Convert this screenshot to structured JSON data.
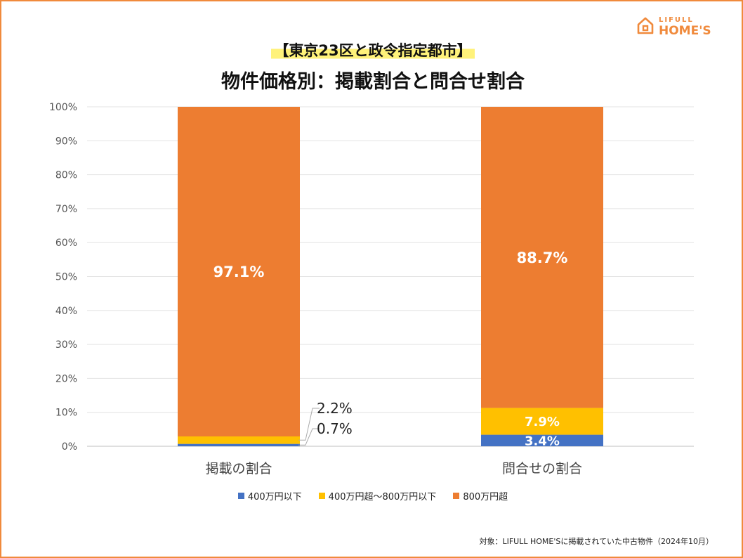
{
  "brand": {
    "line1": "LIFULL",
    "line2": "HOME'S",
    "color": "#f08a3c",
    "icon": "house-icon"
  },
  "title_line1": "【東京23区と政令指定都市】",
  "title_line2": "物件価格別：掲載割合と問合せ割合",
  "source_note": "対象：LIFULL HOME'Sに掲載されていた中古物件（2024年10月）",
  "chart_data": {
    "type": "bar",
    "stacked": true,
    "categories": [
      "掲載の割合",
      "問合せの割合"
    ],
    "series": [
      {
        "name": "400万円以下",
        "color": "#4472c4",
        "values": [
          0.7,
          3.4
        ],
        "labels": [
          "0.7%",
          "3.4%"
        ]
      },
      {
        "name": "400万円超～800万円以下",
        "color": "#ffc000",
        "values": [
          2.2,
          7.9
        ],
        "labels": [
          "2.2%",
          "7.9%"
        ]
      },
      {
        "name": "800万円超",
        "color": "#ed7d31",
        "values": [
          97.1,
          88.7
        ],
        "labels": [
          "97.1%",
          "88.7%"
        ]
      }
    ],
    "ylim": [
      0,
      100
    ],
    "yticks": [
      "0%",
      "10%",
      "20%",
      "30%",
      "40%",
      "50%",
      "60%",
      "70%",
      "80%",
      "90%",
      "100%"
    ],
    "grid": true,
    "legend": "bottom"
  }
}
